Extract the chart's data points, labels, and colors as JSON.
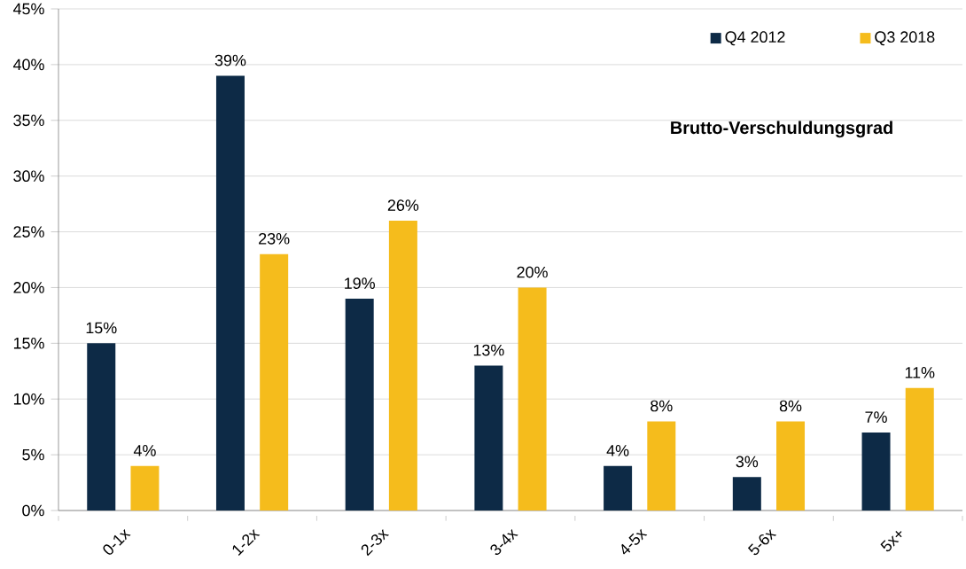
{
  "chart_data": {
    "type": "bar",
    "title": "Brutto-Verschuldungsgrad",
    "categories": [
      "0-1x",
      "1-2x",
      "2-3x",
      "3-4x",
      "4-5x",
      "5-6x",
      "5x+"
    ],
    "series": [
      {
        "name": "Q4 2012",
        "color": "#0d2a46",
        "values": [
          15,
          39,
          19,
          13,
          4,
          3,
          7
        ],
        "value_labels": [
          "15%",
          "39%",
          "19%",
          "13%",
          "4%",
          "3%",
          "7%"
        ]
      },
      {
        "name": "Q3 2018",
        "color": "#f5bc1c",
        "values": [
          4,
          23,
          26,
          20,
          8,
          8,
          11
        ],
        "value_labels": [
          "4%",
          "23%",
          "26%",
          "20%",
          "8%",
          "8%",
          "11%"
        ]
      }
    ],
    "ylim": [
      0,
      45
    ],
    "yticks": [
      {
        "value": 0,
        "label": "0%"
      },
      {
        "value": 5,
        "label": "5%"
      },
      {
        "value": 10,
        "label": "10%"
      },
      {
        "value": 15,
        "label": "15%"
      },
      {
        "value": 20,
        "label": "20%"
      },
      {
        "value": 25,
        "label": "25%"
      },
      {
        "value": 30,
        "label": "30%"
      },
      {
        "value": 35,
        "label": "35%"
      },
      {
        "value": 40,
        "label": "40%"
      },
      {
        "value": 45,
        "label": "45%"
      }
    ],
    "grid": "y",
    "legend": "top right"
  }
}
